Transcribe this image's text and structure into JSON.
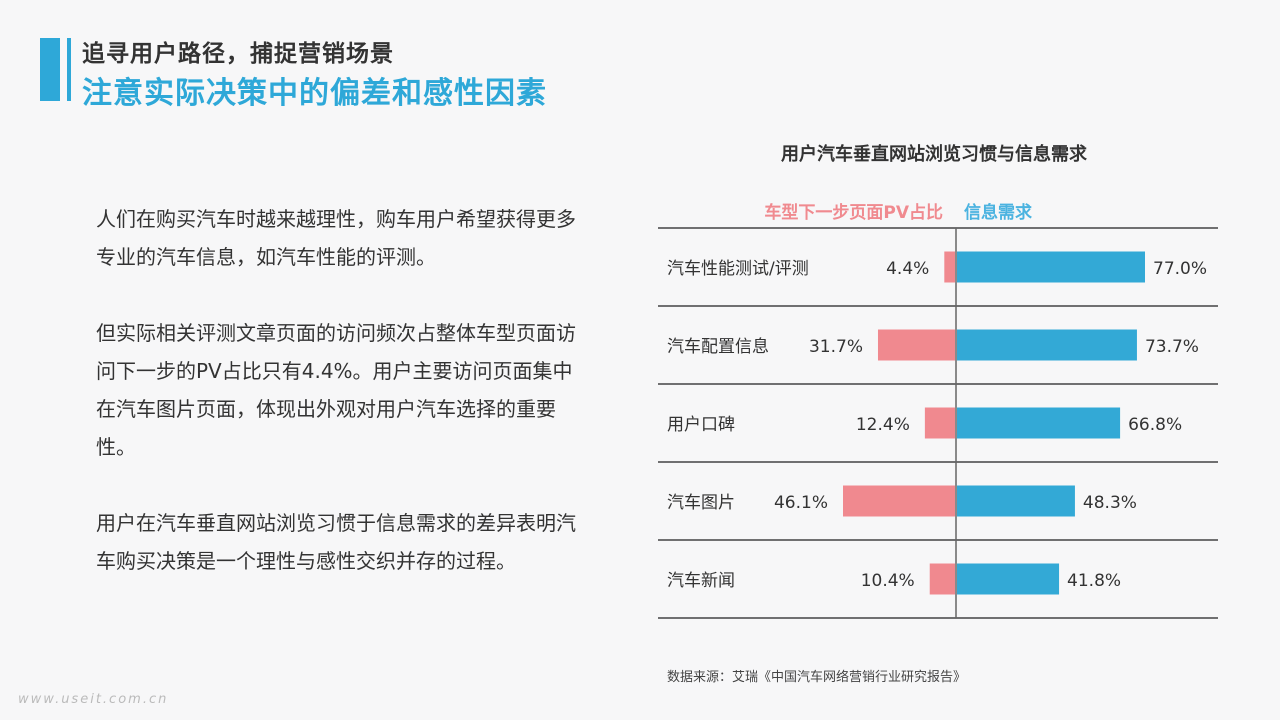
{
  "header": {
    "subtitle": "追寻用户路径，捕捉营销场景",
    "title": "注意实际决策中的偏差和感性因素",
    "accent_color": "#2ea8d8"
  },
  "body": {
    "paragraphs": [
      "人们在购买汽车时越来越理性，购车用户希望获得更多专业的汽车信息，如汽车性能的评测。",
      "但实际相关评测文章页面的访问频次占整体车型页面访问下一步的PV占比只有4.4%。用户主要访问页面集中在汽车图片页面，体现出外观对用户汽车选择的重要性。",
      "用户在汽车垂直网站浏览习惯于信息需求的差异表明汽车购买决策是一个理性与感性交织并存的过程。"
    ]
  },
  "chart_data": {
    "type": "bar",
    "title": "用户汽车垂直网站浏览习惯与信息需求",
    "categories": [
      "汽车性能测试/评测",
      "汽车配置信息",
      "用户口碑",
      "汽车图片",
      "汽车新闻"
    ],
    "series": [
      {
        "name": "车型下一步页面PV占比",
        "values": [
          4.4,
          31.7,
          12.4,
          46.1,
          10.4
        ],
        "labels": [
          "4.4%",
          "31.7%",
          "12.4%",
          "46.1%",
          "10.4%"
        ],
        "color": "#f0898f"
      },
      {
        "name": "信息需求",
        "values": [
          77.0,
          73.7,
          66.8,
          48.3,
          41.8
        ],
        "labels": [
          "77.0%",
          "73.7%",
          "66.8%",
          "48.3%",
          "41.8%"
        ],
        "color": "#33a9d6"
      }
    ],
    "xlim": [
      0,
      100
    ],
    "legend_placement": "top",
    "grid": false
  },
  "source": "数据来源：艾瑞《中国汽车网络营销行业研究报告》",
  "watermark": "www.useit.com.cn"
}
